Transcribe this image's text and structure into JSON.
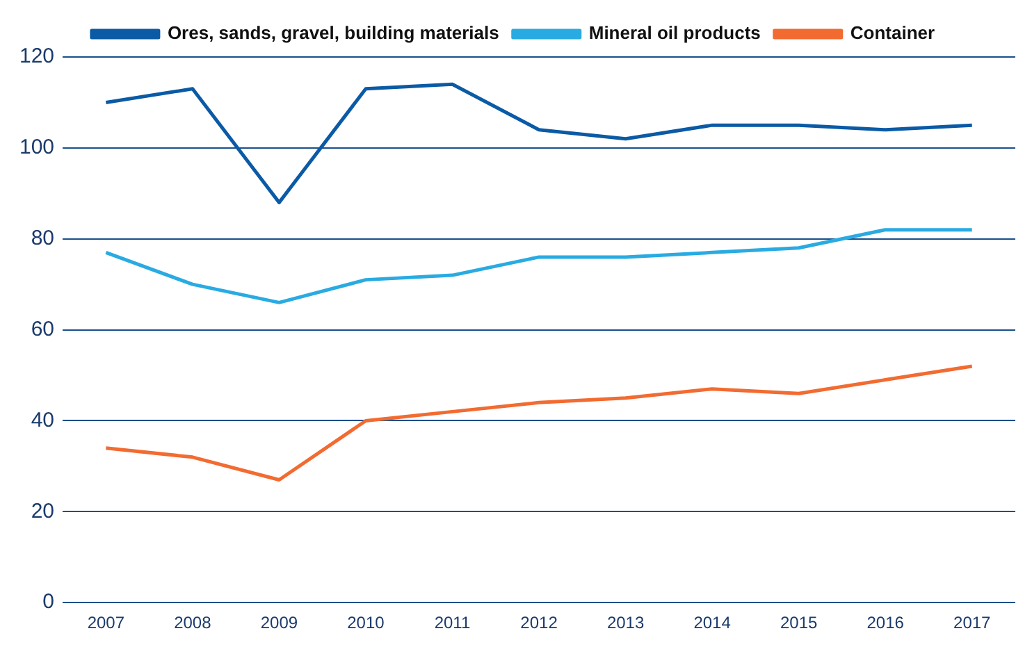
{
  "chart_data": {
    "type": "line",
    "categories": [
      "2007",
      "2008",
      "2009",
      "2010",
      "2011",
      "2012",
      "2013",
      "2014",
      "2015",
      "2016",
      "2017"
    ],
    "series": [
      {
        "name": "Ores, sands, gravel, building materials",
        "color": "#0b5aa5",
        "values": [
          110,
          113,
          88,
          113,
          114,
          104,
          102,
          105,
          105,
          104,
          105
        ]
      },
      {
        "name": "Mineral oil products",
        "color": "#29abe2",
        "values": [
          77,
          70,
          66,
          71,
          72,
          76,
          76,
          77,
          78,
          82,
          82
        ]
      },
      {
        "name": "Container",
        "color": "#f26b31",
        "values": [
          34,
          32,
          27,
          40,
          42,
          44,
          45,
          47,
          46,
          49,
          52
        ]
      }
    ],
    "ylim": [
      0,
      120
    ],
    "yticks": [
      0,
      20,
      40,
      60,
      80,
      100,
      120
    ],
    "grid": "y",
    "legend": "top",
    "marker": "none",
    "line_style": "solid"
  }
}
